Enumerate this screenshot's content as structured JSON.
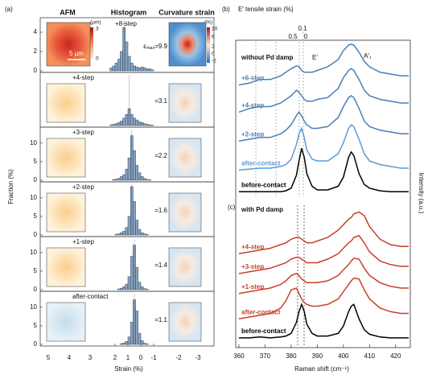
{
  "panel_a": {
    "label": "(a)",
    "columns": [
      "AFM",
      "Histogram",
      "Curvature strain"
    ],
    "afm_unit": "(µm)",
    "afm_scale": [
      "3",
      "0"
    ],
    "scale_bar": "5 µm",
    "curv_unit": "(%)",
    "curv_scale": [
      "10",
      "6",
      "2",
      "0",
      "-2"
    ],
    "eps_symbol": "ε",
    "eps_sub": "max",
    "image_ticks": [
      "5",
      "4",
      "3"
    ],
    "curv_ticks": [
      "-2",
      "-3"
    ],
    "xlabel": "Strain (%)",
    "ylabel": "Fraction (%)"
  },
  "chart_data": [
    {
      "type": "histogram",
      "label": "+8-step",
      "eps": "=9.9",
      "color": "#8aa4c0",
      "bins": [
        2.4,
        2.2,
        2.0,
        1.8,
        1.6,
        1.4,
        1.2,
        1.0,
        0.8,
        0.6,
        0.4,
        0.2,
        0,
        -0.2,
        -0.4,
        -0.6,
        -0.8,
        -1.0
      ],
      "counts": [
        0.3,
        0.5,
        0.8,
        1.2,
        2.0,
        4.5,
        3.0,
        1.5,
        0.8,
        0.5,
        0.4,
        0.3,
        0.4,
        0.3,
        0.2,
        0.2,
        0.1
      ],
      "xlim": [
        2.5,
        -1.5
      ],
      "ylim": [
        0,
        5
      ],
      "yticks": [
        0,
        2,
        4
      ]
    },
    {
      "type": "histogram",
      "label": "+4-step",
      "eps": "=3.1",
      "color": "#8aa4c0",
      "bins": [
        2.4,
        2.2,
        2.0,
        1.8,
        1.6,
        1.4,
        1.2,
        1.0,
        0.8,
        0.6,
        0.4,
        0.2,
        0,
        -0.2,
        -0.4,
        -0.6,
        -0.8,
        -1.0
      ],
      "counts": [
        0.2,
        0.3,
        0.5,
        0.8,
        1.2,
        2,
        3,
        4.5,
        3,
        2,
        1.5,
        1,
        0.8,
        0.5,
        0.3,
        0.2,
        0.1
      ],
      "xlim": [
        2.5,
        -1.5
      ],
      "ylim": [
        0,
        13
      ]
    },
    {
      "type": "histogram",
      "label": "+3-step",
      "eps": "=2.2",
      "color": "#8aa4c0",
      "bins": [
        2.4,
        2.2,
        2.0,
        1.8,
        1.6,
        1.4,
        1.2,
        1.0,
        0.8,
        0.6,
        0.4,
        0.2,
        0,
        -0.2,
        -0.4,
        -0.6,
        -0.8,
        -1.0
      ],
      "counts": [
        0,
        0.2,
        0.3,
        0.5,
        1,
        1.5,
        3,
        6,
        12,
        8,
        4,
        2,
        1,
        0.5,
        0.2,
        0.1,
        0
      ],
      "xlim": [
        2.5,
        -1.5
      ],
      "ylim": [
        0,
        13
      ],
      "yticks": [
        0,
        5,
        10
      ]
    },
    {
      "type": "histogram",
      "label": "+2-step",
      "eps": "=1.6",
      "color": "#8aa4c0",
      "bins": [
        2.4,
        2.2,
        2.0,
        1.8,
        1.6,
        1.4,
        1.2,
        1.0,
        0.8,
        0.6,
        0.4,
        0.2,
        0,
        -0.2,
        -0.4,
        -0.6,
        -0.8,
        -1.0
      ],
      "counts": [
        0,
        0,
        0.2,
        0.3,
        0.6,
        1,
        2,
        5,
        13,
        9,
        4,
        1.5,
        0.6,
        0.3,
        0.1,
        0,
        0
      ],
      "xlim": [
        2.5,
        -1.5
      ],
      "ylim": [
        0,
        13
      ],
      "yticks": [
        0,
        5,
        10
      ]
    },
    {
      "type": "histogram",
      "label": "+1-step",
      "eps": "=1.4",
      "color": "#8aa4c0",
      "bins": [
        2.4,
        2.2,
        2.0,
        1.8,
        1.6,
        1.4,
        1.2,
        1.0,
        0.8,
        0.6,
        0.4,
        0.2,
        0,
        -0.2,
        -0.4,
        -0.6,
        -0.8,
        -1.0
      ],
      "counts": [
        0,
        0,
        0,
        0.2,
        0.4,
        0.8,
        1.5,
        3.5,
        9,
        12,
        6,
        2,
        0.8,
        0.3,
        0.1,
        0,
        0
      ],
      "xlim": [
        2.5,
        -1.5
      ],
      "ylim": [
        0,
        13
      ],
      "yticks": [
        0,
        5,
        10
      ]
    },
    {
      "type": "histogram",
      "label": "after-contact",
      "eps": "=1.1",
      "color": "#8aa4c0",
      "bins": [
        2.4,
        2.2,
        2.0,
        1.8,
        1.6,
        1.4,
        1.2,
        1.0,
        0.8,
        0.6,
        0.4,
        0.2,
        0,
        -0.2,
        -0.4,
        -0.6,
        -0.8,
        -1.0
      ],
      "counts": [
        0,
        0,
        0,
        0,
        0.2,
        0.4,
        0.8,
        2,
        6,
        12,
        9,
        3,
        1,
        0.3,
        0.1,
        0,
        0
      ],
      "xlim": [
        2.5,
        -1.5
      ],
      "ylim": [
        0,
        13
      ],
      "yticks": [
        0,
        5,
        10
      ],
      "xticks": [
        2,
        1,
        0,
        -1
      ]
    },
    {
      "type": "line",
      "panel": "(b)",
      "title": "E′ tensile strain (%)",
      "strain_marks": [
        "0.5",
        "0",
        "0.1"
      ],
      "note": "without Pd damp",
      "peak_labels": [
        "E′",
        "A′₁"
      ],
      "ylabel": "Intensity (a.u.)",
      "x": [
        360,
        364,
        368,
        372,
        376,
        378,
        380,
        382,
        383,
        384,
        385,
        386,
        388,
        390,
        394,
        398,
        400,
        402,
        403,
        404,
        406,
        408,
        410,
        414,
        418,
        422,
        425
      ],
      "xlim": [
        360,
        425
      ],
      "ylim": [
        0,
        10
      ],
      "series": [
        {
          "name": "+6-step",
          "color": "#4a7fb5",
          "values": [
            6.2,
            6.3,
            6.5,
            6.5,
            6.7,
            6.9,
            7.1,
            7.25,
            7.2,
            7.0,
            6.9,
            6.9,
            6.9,
            7.0,
            7.2,
            7.6,
            8.1,
            8.4,
            8.45,
            8.4,
            8.0,
            7.5,
            7.2,
            6.9,
            6.8,
            6.7,
            6.7
          ]
        },
        {
          "name": "+4-step",
          "color": "#4a7fb5",
          "values": [
            4.7,
            4.9,
            5.0,
            5.0,
            5.2,
            5.4,
            5.6,
            5.9,
            5.8,
            5.6,
            5.4,
            5.3,
            5.3,
            5.4,
            5.5,
            6.0,
            6.6,
            7.0,
            7.1,
            7.0,
            6.5,
            5.9,
            5.6,
            5.4,
            5.3,
            5.2,
            5.2
          ]
        },
        {
          "name": "+2-step",
          "color": "#4a7fb5",
          "values": [
            3.1,
            3.2,
            3.3,
            3.3,
            3.5,
            3.7,
            4.0,
            4.5,
            4.7,
            4.5,
            4.2,
            4.0,
            3.8,
            3.8,
            3.9,
            4.4,
            5.0,
            5.5,
            5.6,
            5.5,
            4.9,
            4.2,
            3.9,
            3.7,
            3.6,
            3.5,
            3.5
          ]
        },
        {
          "name": "after-contact",
          "color": "#5b9bd5",
          "values": [
            1.5,
            1.55,
            1.6,
            1.6,
            1.7,
            1.8,
            2.1,
            2.9,
            3.5,
            3.8,
            3.3,
            2.6,
            2.1,
            2.0,
            2.0,
            2.4,
            3.0,
            3.8,
            4.0,
            3.9,
            3.2,
            2.4,
            2.0,
            1.8,
            1.7,
            1.6,
            1.6
          ]
        },
        {
          "name": "before-contact",
          "color": "#000000",
          "values": [
            0.3,
            0.3,
            0.3,
            0.3,
            0.3,
            0.35,
            0.5,
            1.2,
            2.0,
            2.7,
            2.2,
            1.3,
            0.6,
            0.4,
            0.4,
            0.6,
            1.1,
            2.2,
            2.5,
            2.3,
            1.3,
            0.7,
            0.5,
            0.35,
            0.3,
            0.3,
            0.3
          ]
        }
      ]
    },
    {
      "type": "line",
      "panel": "(c)",
      "note": "with Pd damp",
      "xlabel": "Raman shift (cm⁻¹)",
      "x": [
        360,
        364,
        368,
        372,
        376,
        378,
        380,
        382,
        383,
        384,
        385,
        386,
        388,
        390,
        394,
        398,
        400,
        402,
        403,
        404,
        406,
        408,
        410,
        414,
        418,
        422,
        425
      ],
      "xlim": [
        360,
        425
      ],
      "xticks": [
        360,
        370,
        380,
        390,
        400,
        410,
        420
      ],
      "ylim": [
        0,
        8
      ],
      "series": [
        {
          "name": "+4-step",
          "color": "#c8402a",
          "values": [
            5.1,
            5.2,
            5.3,
            5.4,
            5.6,
            5.7,
            5.9,
            6.0,
            6.0,
            5.9,
            5.8,
            5.7,
            5.7,
            5.8,
            6.0,
            6.4,
            6.7,
            7.0,
            7.1,
            7.3,
            7.4,
            7.2,
            6.6,
            5.9,
            5.6,
            5.5,
            5.5
          ]
        },
        {
          "name": "+3-step",
          "color": "#c8402a",
          "values": [
            4.0,
            4.1,
            4.2,
            4.3,
            4.5,
            4.6,
            4.8,
            4.9,
            4.9,
            4.8,
            4.7,
            4.6,
            4.6,
            4.6,
            4.8,
            5.1,
            5.4,
            5.7,
            5.8,
            6.0,
            6.1,
            5.7,
            5.2,
            4.7,
            4.5,
            4.4,
            4.4
          ]
        },
        {
          "name": "+1-step",
          "color": "#c8402a",
          "values": [
            2.9,
            3.0,
            3.1,
            3.2,
            3.4,
            3.6,
            3.9,
            4.0,
            3.9,
            3.7,
            3.6,
            3.5,
            3.5,
            3.5,
            3.6,
            3.9,
            4.2,
            4.5,
            4.7,
            4.85,
            4.8,
            4.3,
            3.9,
            3.5,
            3.3,
            3.2,
            3.2
          ]
        },
        {
          "name": "after-contact",
          "color": "#c8402a",
          "values": [
            1.5,
            1.6,
            1.7,
            1.8,
            2.1,
            2.5,
            3.1,
            3.2,
            2.9,
            2.6,
            2.4,
            2.3,
            2.2,
            2.2,
            2.3,
            2.6,
            3.0,
            3.4,
            3.6,
            3.75,
            3.7,
            3.1,
            2.6,
            2.1,
            1.9,
            1.8,
            1.8
          ]
        },
        {
          "name": "before-contact",
          "color": "#000000",
          "values": [
            0.45,
            0.45,
            0.5,
            0.45,
            0.5,
            0.55,
            0.7,
            1.3,
            1.9,
            2.3,
            1.9,
            1.2,
            0.7,
            0.55,
            0.55,
            0.7,
            1.1,
            1.9,
            2.2,
            2.3,
            1.5,
            0.9,
            0.65,
            0.5,
            0.45,
            0.45,
            0.45
          ]
        }
      ]
    }
  ]
}
